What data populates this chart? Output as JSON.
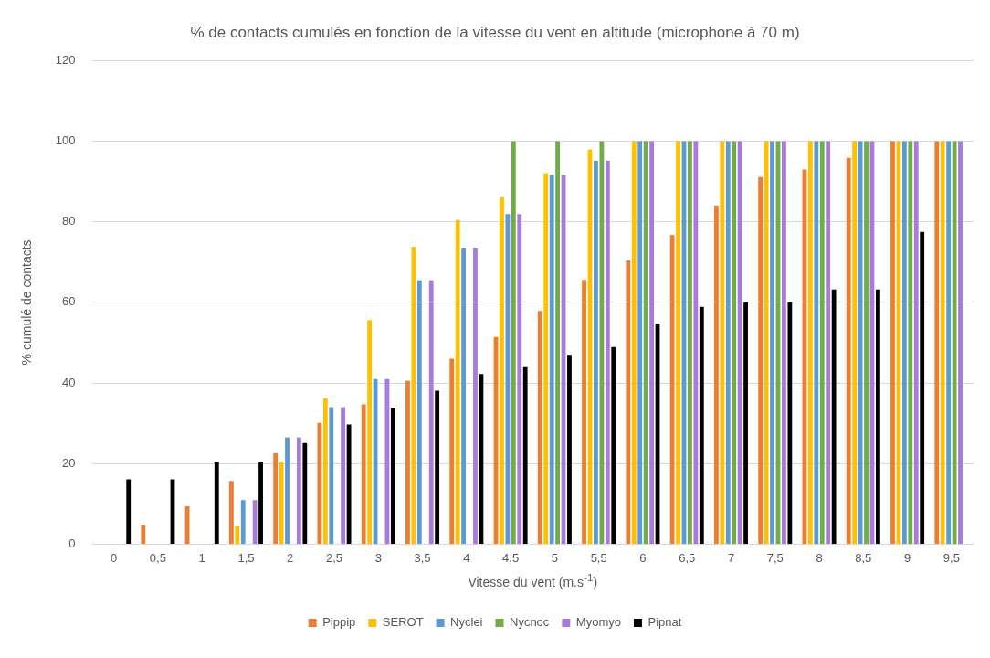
{
  "chart_data": {
    "type": "bar",
    "title": "% de contacts cumulés en fonction de la vitesse du vent en altitude (microphone à 70 m)",
    "xlabel": "Vitesse du vent (m.s$^{-1}$)",
    "ylabel": "% cumulé de contacts",
    "categories": [
      "0",
      "0,5",
      "1",
      "1,5",
      "2",
      "2,5",
      "3",
      "3,5",
      "4",
      "4,5",
      "5",
      "5,5",
      "6",
      "6,5",
      "7",
      "7,5",
      "8",
      "8,5",
      "9",
      "9,5"
    ],
    "series": [
      {
        "name": "Pippip",
        "color": "#ed7d31",
        "values": [
          0,
          4.7,
          9.4,
          15.7,
          22.6,
          30.1,
          34.7,
          40.5,
          46.0,
          51.4,
          57.9,
          65.6,
          70.4,
          76.7,
          84.0,
          91.1,
          93.0,
          95.9,
          100,
          100
        ]
      },
      {
        "name": "SEROT",
        "color": "#ffc000",
        "values": [
          0,
          0,
          0,
          4.4,
          20.5,
          36.2,
          55.6,
          73.8,
          80.4,
          86.1,
          92.1,
          98.0,
          100,
          100,
          100,
          100,
          100,
          100,
          100,
          100
        ]
      },
      {
        "name": "Nyclei",
        "color": "#5b9bd5",
        "values": [
          0,
          0,
          0,
          10.9,
          26.5,
          34.0,
          41.0,
          65.5,
          73.6,
          81.9,
          91.6,
          95.2,
          100,
          100,
          100,
          100,
          100,
          100,
          100,
          100
        ]
      },
      {
        "name": "Nycnoc",
        "color": "#70ad47",
        "values": [
          0,
          0,
          0,
          0,
          0,
          0,
          0,
          0,
          0,
          100,
          100,
          100,
          100,
          100,
          100,
          100,
          100,
          100,
          100,
          100
        ]
      },
      {
        "name": "Myomyo",
        "color": "#a97bd8",
        "values": [
          0,
          0,
          0,
          10.9,
          26.5,
          34.0,
          41.0,
          65.5,
          73.6,
          81.9,
          91.6,
          95.2,
          100,
          100,
          100,
          100,
          100,
          100,
          100,
          100
        ]
      },
      {
        "name": "Pipnat",
        "color": "#000000",
        "values": [
          16.1,
          16.1,
          20.3,
          20.3,
          25.1,
          29.7,
          33.9,
          38.1,
          42.2,
          43.9,
          47.0,
          48.9,
          54.7,
          58.9,
          60.0,
          60.0,
          63.2,
          63.2,
          77.5,
          null
        ]
      }
    ],
    "ylim": [
      0,
      120
    ],
    "yticks": [
      0,
      20,
      40,
      60,
      80,
      100,
      120
    ],
    "grid": "y",
    "legend": "bottom"
  }
}
